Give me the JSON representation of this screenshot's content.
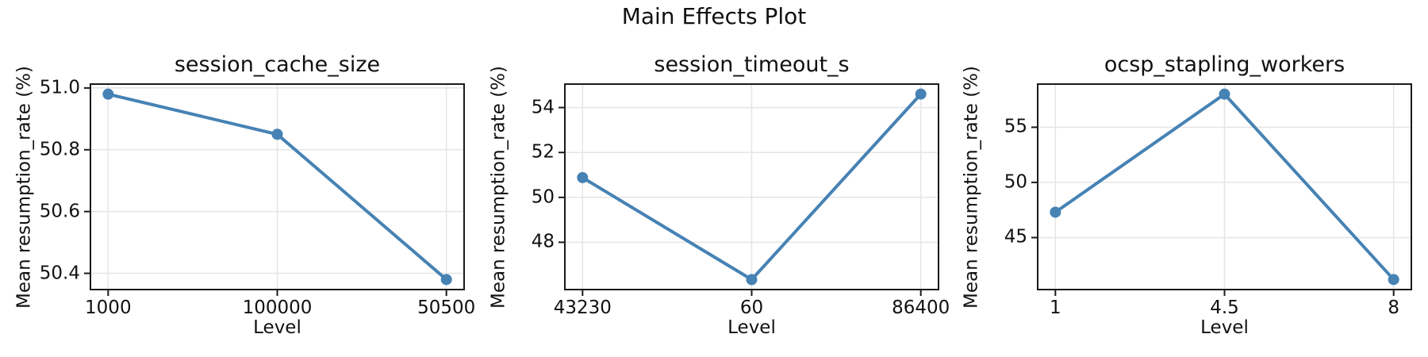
{
  "figure": {
    "suptitle": "Main Effects Plot",
    "colors": {
      "line": "#4682B4",
      "marker": "#4682B4",
      "spine": "#1a1a1a",
      "grid": "#e5e5e5",
      "text": "#111111",
      "background": "#ffffff"
    }
  },
  "chart_data": [
    {
      "type": "line",
      "title": "session_cache_size",
      "xlabel": "Level",
      "ylabel": "Mean resumption_rate (%)",
      "categories": [
        "1000",
        "100000",
        "50500"
      ],
      "values": [
        50.98,
        50.85,
        50.38
      ],
      "yticks": [
        50.4,
        50.6,
        50.8,
        51.0
      ],
      "ytick_labels": [
        "50.4",
        "50.6",
        "50.8",
        "51.0"
      ],
      "ylim": [
        50.35,
        51.01
      ],
      "grid": true,
      "legend_position": "none"
    },
    {
      "type": "line",
      "title": "session_timeout_s",
      "xlabel": "Level",
      "ylabel": "Mean resumption_rate (%)",
      "categories": [
        "43230",
        "60",
        "86400"
      ],
      "values": [
        50.88,
        46.34,
        54.6
      ],
      "yticks": [
        48,
        50,
        52,
        54
      ],
      "ytick_labels": [
        "48",
        "50",
        "52",
        "54"
      ],
      "ylim": [
        45.93,
        55.01
      ],
      "grid": true,
      "legend_position": "none"
    },
    {
      "type": "line",
      "title": "ocsp_stapling_workers",
      "xlabel": "Level",
      "ylabel": "Mean resumption_rate (%)",
      "categories": [
        "1",
        "4.5",
        "8"
      ],
      "values": [
        47.3,
        58.0,
        41.2
      ],
      "yticks": [
        45,
        50,
        55
      ],
      "ytick_labels": [
        "45",
        "50",
        "55"
      ],
      "ylim": [
        40.36,
        58.84
      ],
      "grid": true,
      "legend_position": "none"
    }
  ]
}
